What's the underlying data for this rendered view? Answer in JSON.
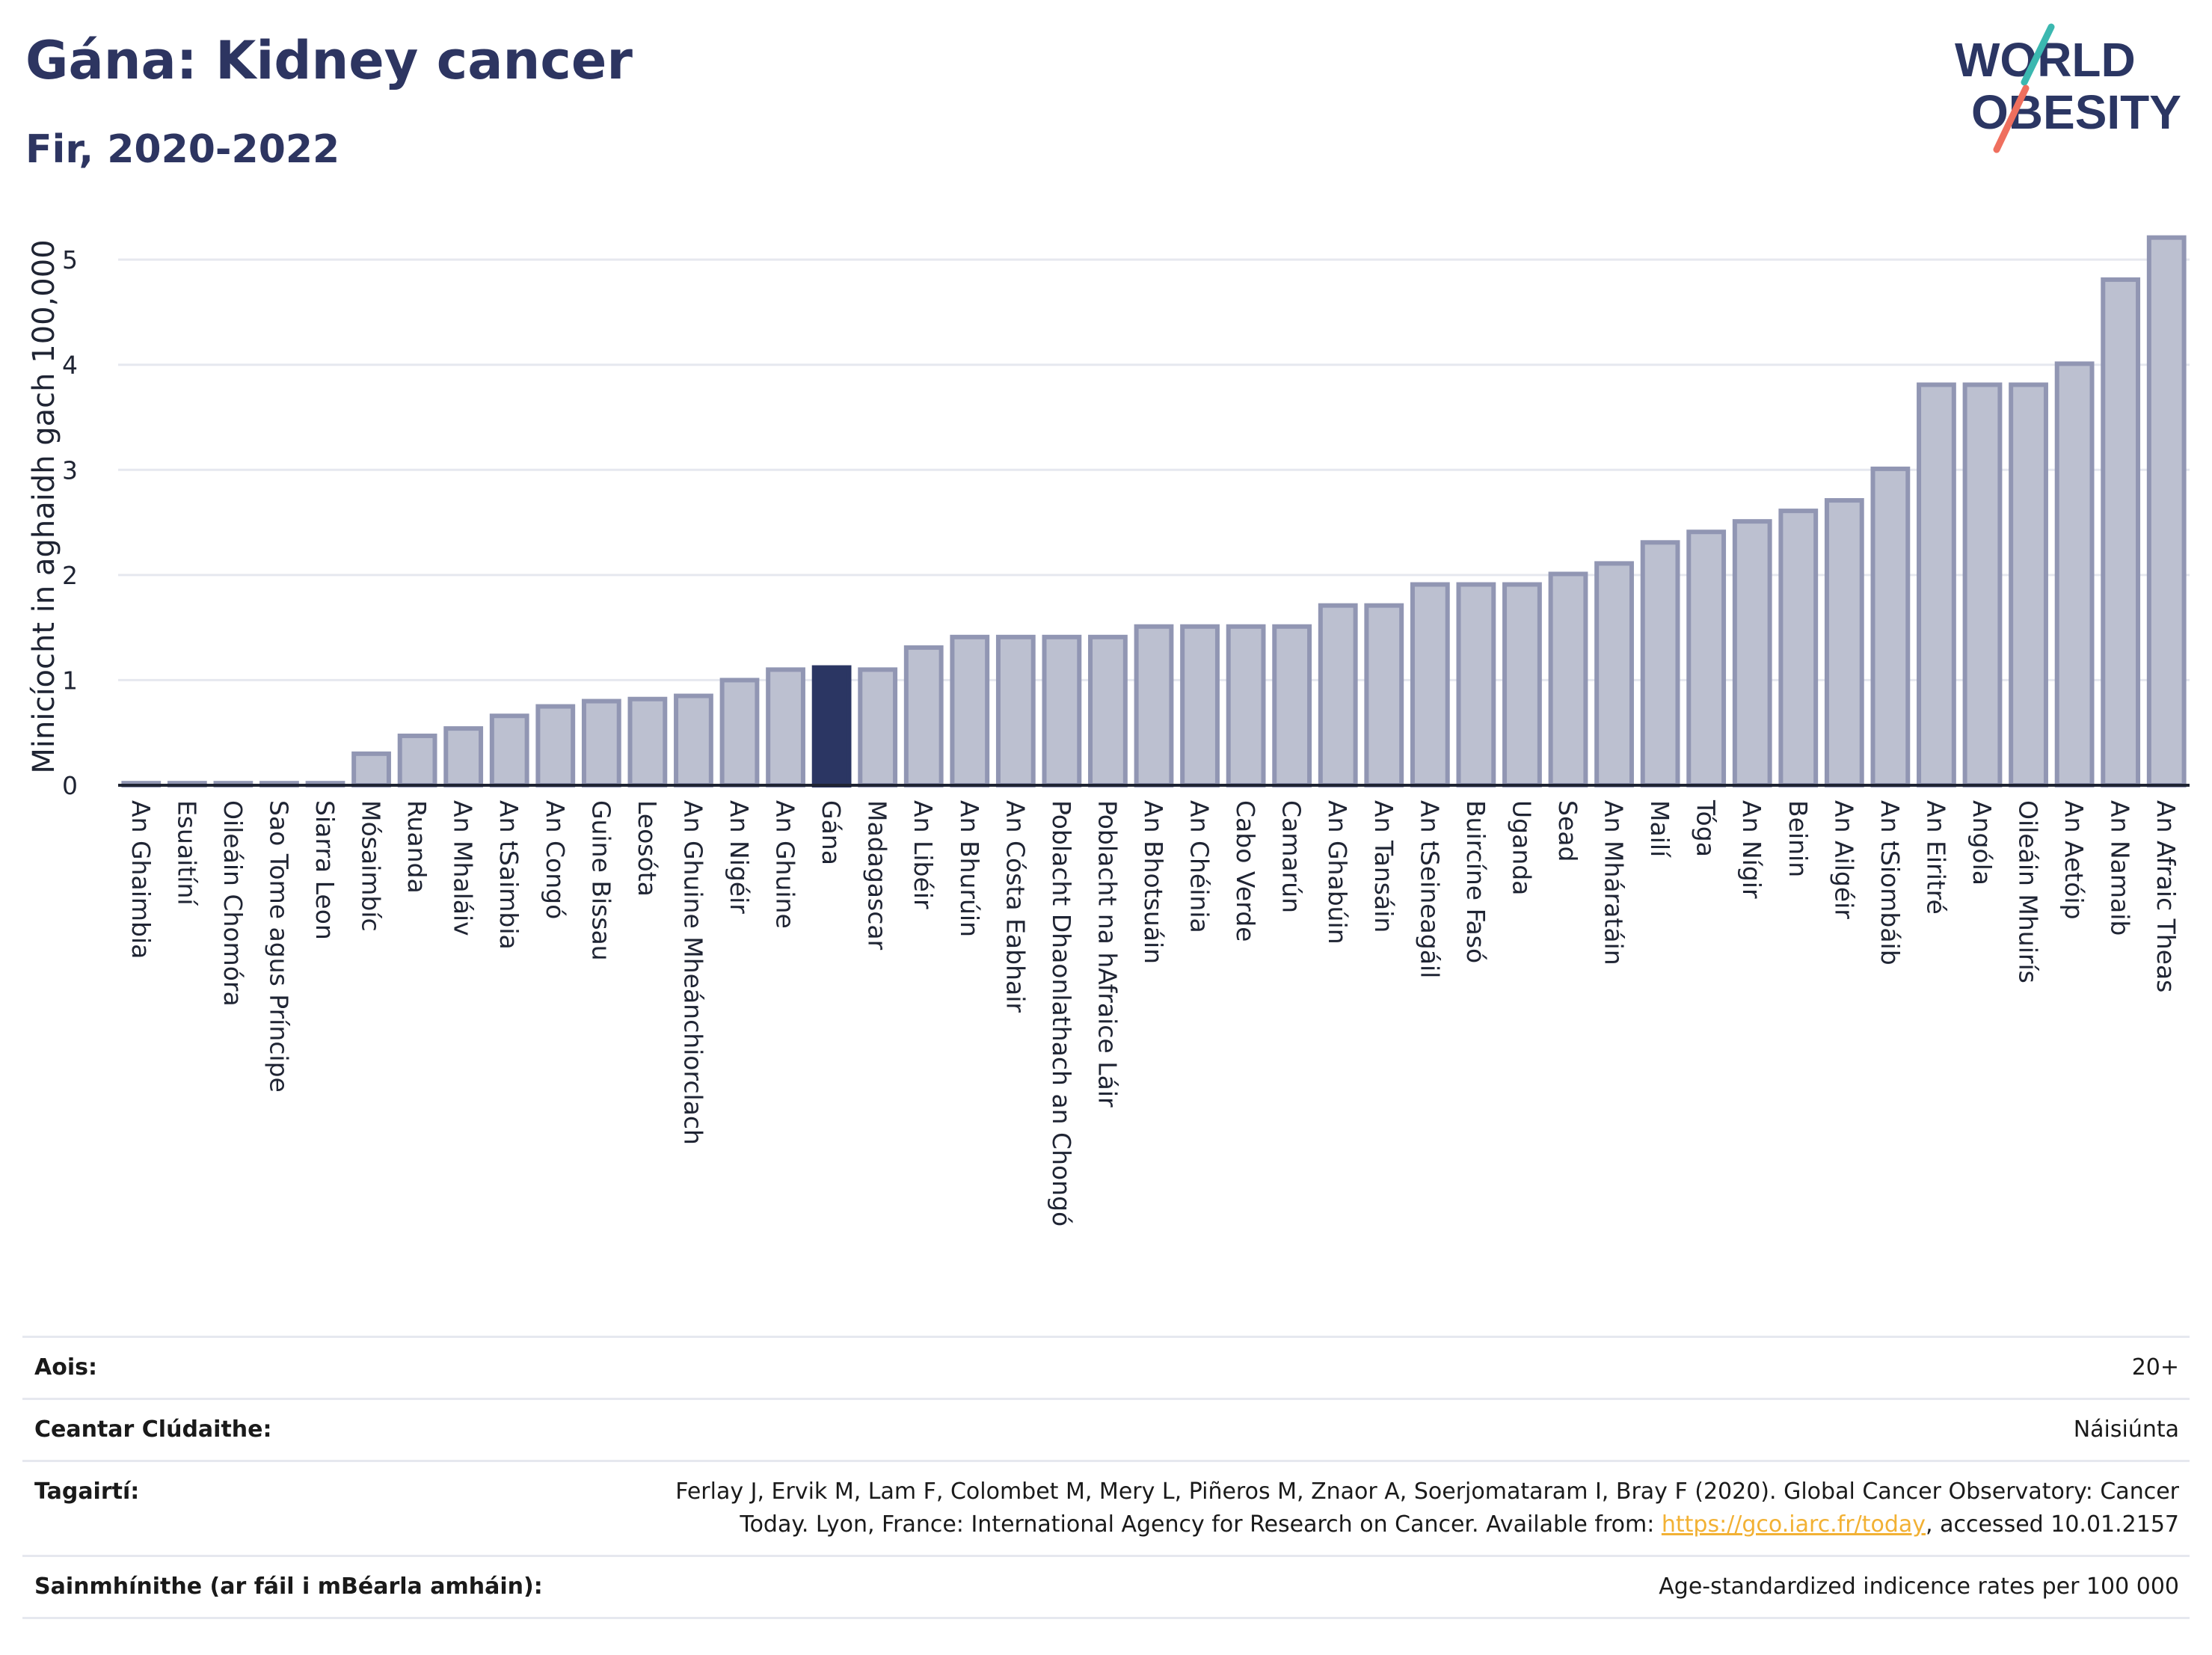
{
  "header": {
    "title": "Gána: Kidney cancer",
    "subtitle": "Fir, 2020-2022"
  },
  "logo": {
    "line1": "WORLD",
    "line2": "OBESITY"
  },
  "colors": {
    "highlight": "#2b3663",
    "bar_fill": "#bcc0d0",
    "bar_stroke": "#9196b3",
    "axis": "#1f2433",
    "grid": "#e6e8ef"
  },
  "chart_data": {
    "type": "bar",
    "ylabel": "Minicíocht in aghaidh gach 100,000",
    "ylim": [
      0,
      5.3
    ],
    "yticks": [
      0,
      1,
      2,
      3,
      4,
      5
    ],
    "grid": true,
    "highlight": "Gána",
    "categories": [
      "An Ghaimbia",
      "Esuaitíní",
      "Oileáin Chomóra",
      "Sao Tome agus Príncipe",
      "Siarra Leon",
      "Mósaimbíc",
      "Ruanda",
      "An Mhaláiv",
      "An tSaimbia",
      "An Congó",
      "Guine Bissau",
      "Leosóta",
      "An Ghuine Mheánchiorclach",
      "An Nigéir",
      "An Ghuine",
      "Gána",
      "Madagascar",
      "An Libéir",
      "An Bhurúin",
      "An Cósta Eabhair",
      "Poblacht Dhaonlathach an Chongó",
      "Poblacht na hAfraice Láir",
      "An Bhotsuáin",
      "An Chéinia",
      "Cabo Verde",
      "Camarún",
      "An Ghabúin",
      "An Tansáin",
      "An tSeineagáil",
      "Buircíne Fasó",
      "Uganda",
      "Sead",
      "An Mháratáin",
      "Mailí",
      "Tóga",
      "An Nígir",
      "Beinin",
      "An Ailgéir",
      "An tSiombáib",
      "An Eiritré",
      "Angóla",
      "Oileáin Mhuirís",
      "An Aetóip",
      "An Namaib",
      "An Afraic Theas"
    ],
    "values": [
      0.02,
      0.02,
      0.02,
      0.02,
      0.02,
      0.3,
      0.47,
      0.54,
      0.66,
      0.75,
      0.8,
      0.82,
      0.85,
      1.0,
      1.1,
      1.12,
      1.1,
      1.31,
      1.41,
      1.41,
      1.41,
      1.41,
      1.51,
      1.51,
      1.51,
      1.51,
      1.71,
      1.71,
      1.91,
      1.91,
      1.91,
      2.01,
      2.11,
      2.31,
      2.41,
      2.51,
      2.61,
      2.71,
      3.01,
      3.81,
      3.81,
      3.81,
      4.01,
      4.81,
      5.21
    ]
  },
  "info": {
    "rows": [
      {
        "label": "Aois:",
        "value": "20+"
      },
      {
        "label": "Ceantar Clúdaithe:",
        "value": "Náisiúnta"
      },
      {
        "label": "Tagairtí:",
        "value": "Ferlay J, Ervik M, Lam F, Colombet M, Mery L, Piñeros M, Znaor A, Soerjomataram I, Bray F (2020). Global Cancer Observatory: Cancer Today. Lyon, France: International Agency for Research on Cancer. Available from: ",
        "link": "https://gco.iarc.fr/today",
        "suffix": ", accessed 10.01.2157"
      },
      {
        "label": "Sainmhínithe (ar fáil i mBéarla amháin):",
        "value": "Age-standardized indicence rates per 100 000"
      }
    ]
  }
}
